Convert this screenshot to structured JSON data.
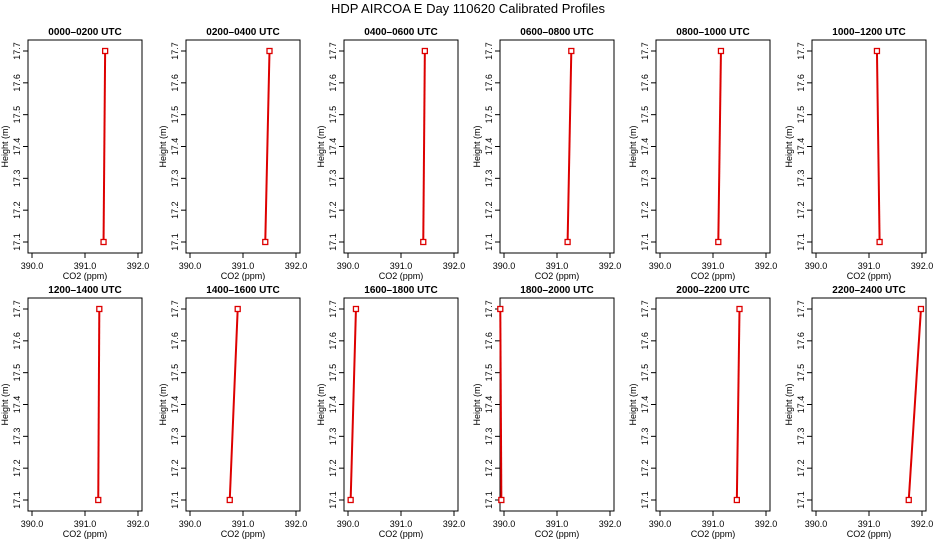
{
  "title": "HDP AIRCOA E  Day 110620  Calibrated Profiles",
  "colors": {
    "profile": "#dd0000",
    "axis": "#000000"
  },
  "chart_data": [
    {
      "type": "line",
      "title": "0000–0200 UTC",
      "xlabel": "CO2 (ppm)",
      "ylabel": "Height (m)",
      "xlim": [
        390.0,
        392.0
      ],
      "ylim": [
        17.1,
        17.7
      ],
      "xticks": [
        "390.0",
        "391.0",
        "392.0"
      ],
      "yticks": [
        "17.1",
        "17.2",
        "17.3",
        "17.4",
        "17.5",
        "17.6",
        "17.7"
      ],
      "grid": false,
      "x": [
        391.35,
        391.38
      ],
      "y": [
        17.1,
        17.7
      ]
    },
    {
      "type": "line",
      "title": "0200–0400 UTC",
      "xlabel": "CO2 (ppm)",
      "ylabel": "Height (m)",
      "xlim": [
        390.0,
        392.0
      ],
      "ylim": [
        17.1,
        17.7
      ],
      "xticks": [
        "390.0",
        "391.0",
        "392.0"
      ],
      "yticks": [
        "17.1",
        "17.2",
        "17.3",
        "17.4",
        "17.5",
        "17.6",
        "17.7"
      ],
      "grid": false,
      "x": [
        391.42,
        391.5
      ],
      "y": [
        17.1,
        17.7
      ]
    },
    {
      "type": "line",
      "title": "0400–0600 UTC",
      "xlabel": "CO2 (ppm)",
      "ylabel": "Height (m)",
      "xlim": [
        390.0,
        392.0
      ],
      "ylim": [
        17.1,
        17.7
      ],
      "xticks": [
        "390.0",
        "391.0",
        "392.0"
      ],
      "yticks": [
        "17.1",
        "17.2",
        "17.3",
        "17.4",
        "17.5",
        "17.6",
        "17.7"
      ],
      "grid": false,
      "x": [
        391.42,
        391.45
      ],
      "y": [
        17.1,
        17.7
      ]
    },
    {
      "type": "line",
      "title": "0600–0800 UTC",
      "xlabel": "CO2 (ppm)",
      "ylabel": "Height (m)",
      "xlim": [
        390.0,
        392.0
      ],
      "ylim": [
        17.1,
        17.7
      ],
      "xticks": [
        "390.0",
        "391.0",
        "392.0"
      ],
      "yticks": [
        "17.1",
        "17.2",
        "17.3",
        "17.4",
        "17.5",
        "17.6",
        "17.7"
      ],
      "grid": false,
      "x": [
        391.2,
        391.27
      ],
      "y": [
        17.1,
        17.7
      ]
    },
    {
      "type": "line",
      "title": "0800–1000 UTC",
      "xlabel": "CO2 (ppm)",
      "ylabel": "Height (m)",
      "xlim": [
        390.0,
        392.0
      ],
      "ylim": [
        17.1,
        17.7
      ],
      "xticks": [
        "390.0",
        "391.0",
        "392.0"
      ],
      "yticks": [
        "17.1",
        "17.2",
        "17.3",
        "17.4",
        "17.5",
        "17.6",
        "17.7"
      ],
      "grid": false,
      "x": [
        391.1,
        391.15
      ],
      "y": [
        17.1,
        17.7
      ]
    },
    {
      "type": "line",
      "title": "1000–1200 UTC",
      "xlabel": "CO2 (ppm)",
      "ylabel": "Height (m)",
      "xlim": [
        390.0,
        392.0
      ],
      "ylim": [
        17.1,
        17.7
      ],
      "xticks": [
        "390.0",
        "391.0",
        "392.0"
      ],
      "yticks": [
        "17.1",
        "17.2",
        "17.3",
        "17.4",
        "17.5",
        "17.6",
        "17.7"
      ],
      "grid": false,
      "x": [
        391.2,
        391.15
      ],
      "y": [
        17.1,
        17.7
      ]
    },
    {
      "type": "line",
      "title": "1200–1400 UTC",
      "xlabel": "CO2 (ppm)",
      "ylabel": "Height (m)",
      "xlim": [
        390.0,
        392.0
      ],
      "ylim": [
        17.1,
        17.7
      ],
      "xticks": [
        "390.0",
        "391.0",
        "392.0"
      ],
      "yticks": [
        "17.1",
        "17.2",
        "17.3",
        "17.4",
        "17.5",
        "17.6",
        "17.7"
      ],
      "grid": false,
      "x": [
        391.25,
        391.27
      ],
      "y": [
        17.1,
        17.7
      ]
    },
    {
      "type": "line",
      "title": "1400–1600 UTC",
      "xlabel": "CO2 (ppm)",
      "ylabel": "Height (m)",
      "xlim": [
        390.0,
        392.0
      ],
      "ylim": [
        17.1,
        17.7
      ],
      "xticks": [
        "390.0",
        "391.0",
        "392.0"
      ],
      "yticks": [
        "17.1",
        "17.2",
        "17.3",
        "17.4",
        "17.5",
        "17.6",
        "17.7"
      ],
      "grid": false,
      "x": [
        390.75,
        390.9
      ],
      "y": [
        17.1,
        17.7
      ]
    },
    {
      "type": "line",
      "title": "1600–1800 UTC",
      "xlabel": "CO2 (ppm)",
      "ylabel": "Height (m)",
      "xlim": [
        390.0,
        392.0
      ],
      "ylim": [
        17.1,
        17.7
      ],
      "xticks": [
        "390.0",
        "391.0",
        "392.0"
      ],
      "yticks": [
        "17.1",
        "17.2",
        "17.3",
        "17.4",
        "17.5",
        "17.6",
        "17.7"
      ],
      "grid": false,
      "x": [
        390.05,
        390.15
      ],
      "y": [
        17.1,
        17.7
      ]
    },
    {
      "type": "line",
      "title": "1800–2000 UTC",
      "xlabel": "CO2 (ppm)",
      "ylabel": "Height (m)",
      "xlim": [
        390.0,
        392.0
      ],
      "ylim": [
        17.1,
        17.7
      ],
      "xticks": [
        "390.0",
        "391.0",
        "392.0"
      ],
      "yticks": [
        "17.1",
        "17.2",
        "17.3",
        "17.4",
        "17.5",
        "17.6",
        "17.7"
      ],
      "grid": false,
      "x": [
        389.95,
        389.93
      ],
      "y": [
        17.1,
        17.7
      ]
    },
    {
      "type": "line",
      "title": "2000–2200 UTC",
      "xlabel": "CO2 (ppm)",
      "ylabel": "Height (m)",
      "xlim": [
        390.0,
        392.0
      ],
      "ylim": [
        17.1,
        17.7
      ],
      "xticks": [
        "390.0",
        "391.0",
        "392.0"
      ],
      "yticks": [
        "17.1",
        "17.2",
        "17.3",
        "17.4",
        "17.5",
        "17.6",
        "17.7"
      ],
      "grid": false,
      "x": [
        391.45,
        391.5
      ],
      "y": [
        17.1,
        17.7
      ]
    },
    {
      "type": "line",
      "title": "2200–2400 UTC",
      "xlabel": "CO2 (ppm)",
      "ylabel": "Height (m)",
      "xlim": [
        390.0,
        392.0
      ],
      "ylim": [
        17.1,
        17.7
      ],
      "xticks": [
        "390.0",
        "391.0",
        "392.0"
      ],
      "yticks": [
        "17.1",
        "17.2",
        "17.3",
        "17.4",
        "17.5",
        "17.6",
        "17.7"
      ],
      "grid": false,
      "x": [
        391.75,
        391.98
      ],
      "y": [
        17.1,
        17.7
      ]
    }
  ]
}
